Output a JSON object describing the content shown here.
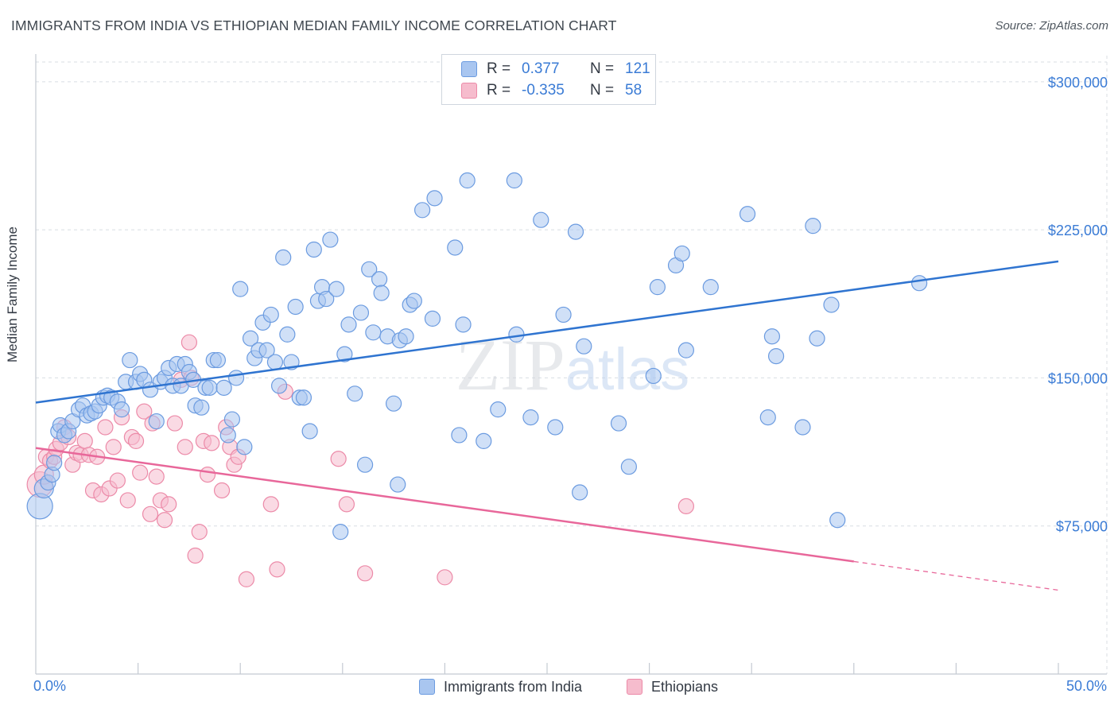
{
  "header": {
    "title": "IMMIGRANTS FROM INDIA VS ETHIOPIAN MEDIAN FAMILY INCOME CORRELATION CHART",
    "source": "Source: ZipAtlas.com"
  },
  "watermark": "ZIPatlas",
  "legend": {
    "rows": [
      {
        "r_label": "R =",
        "r_value": "0.377",
        "n_label": "N =",
        "n_value": "121"
      },
      {
        "r_label": "R =",
        "r_value": "-0.335",
        "n_label": "N =",
        "n_value": "58"
      }
    ]
  },
  "bottom_legend": {
    "india": "Immigrants from India",
    "ethiopians": "Ethiopians"
  },
  "colors": {
    "india_fill": "#a9c6f0",
    "india_stroke": "#6b9be0",
    "india_line": "#2f74d0",
    "eth_fill": "#f6bccd",
    "eth_stroke": "#ec8aa8",
    "eth_line": "#e8679a",
    "axis_text": "#3a7bd5",
    "grid": "#d8dde3"
  },
  "chart_data": {
    "type": "scatter",
    "title": "IMMIGRANTS FROM INDIA VS ETHIOPIAN MEDIAN FAMILY INCOME CORRELATION CHART",
    "xlabel": "",
    "ylabel": "Median Family Income",
    "xlim": [
      0,
      50
    ],
    "ylim": [
      0,
      310000
    ],
    "x_tick_labels": [
      "0.0%",
      "50.0%"
    ],
    "y_ticks": [
      75000,
      150000,
      225000,
      300000
    ],
    "y_tick_labels": [
      "$75,000",
      "$150,000",
      "$225,000",
      "$300,000"
    ],
    "grid": true,
    "series": [
      {
        "name": "Immigrants from India",
        "r": 0.377,
        "n": 121,
        "trend": {
          "x0": 0,
          "y0": 137500,
          "x1": 50,
          "y1": 209000
        },
        "points": [
          [
            0.2,
            85000
          ],
          [
            0.4,
            94000
          ],
          [
            0.6,
            97000
          ],
          [
            0.8,
            101000
          ],
          [
            0.9,
            107000
          ],
          [
            1.1,
            123000
          ],
          [
            1.2,
            126000
          ],
          [
            1.4,
            121000
          ],
          [
            1.6,
            123000
          ],
          [
            1.8,
            128000
          ],
          [
            2.1,
            134000
          ],
          [
            2.3,
            136000
          ],
          [
            2.5,
            131000
          ],
          [
            2.7,
            132000
          ],
          [
            2.9,
            133000
          ],
          [
            3.1,
            136000
          ],
          [
            3.3,
            140000
          ],
          [
            3.5,
            141000
          ],
          [
            3.7,
            140000
          ],
          [
            4.0,
            138000
          ],
          [
            4.2,
            134000
          ],
          [
            4.4,
            148000
          ],
          [
            4.6,
            159000
          ],
          [
            4.9,
            148000
          ],
          [
            5.1,
            152000
          ],
          [
            5.3,
            149000
          ],
          [
            5.6,
            144000
          ],
          [
            5.9,
            128000
          ],
          [
            6.1,
            148000
          ],
          [
            6.3,
            150000
          ],
          [
            6.5,
            155000
          ],
          [
            6.7,
            146000
          ],
          [
            6.9,
            157000
          ],
          [
            7.1,
            146000
          ],
          [
            7.3,
            157000
          ],
          [
            7.5,
            153000
          ],
          [
            7.7,
            149000
          ],
          [
            7.8,
            136000
          ],
          [
            8.1,
            135000
          ],
          [
            8.3,
            145000
          ],
          [
            8.5,
            145000
          ],
          [
            8.7,
            159000
          ],
          [
            8.9,
            159000
          ],
          [
            9.2,
            145000
          ],
          [
            9.4,
            121000
          ],
          [
            9.6,
            129000
          ],
          [
            9.8,
            150000
          ],
          [
            10.0,
            195000
          ],
          [
            10.2,
            115000
          ],
          [
            10.5,
            170000
          ],
          [
            10.7,
            160000
          ],
          [
            10.9,
            164000
          ],
          [
            11.1,
            178000
          ],
          [
            11.3,
            164000
          ],
          [
            11.5,
            182000
          ],
          [
            11.7,
            158000
          ],
          [
            11.9,
            146000
          ],
          [
            12.1,
            211000
          ],
          [
            12.3,
            172000
          ],
          [
            12.5,
            158000
          ],
          [
            12.7,
            186000
          ],
          [
            12.9,
            140000
          ],
          [
            13.1,
            140000
          ],
          [
            13.4,
            123000
          ],
          [
            13.6,
            215000
          ],
          [
            13.8,
            189000
          ],
          [
            14.0,
            196000
          ],
          [
            14.2,
            190000
          ],
          [
            14.4,
            220000
          ],
          [
            14.7,
            195000
          ],
          [
            14.9,
            72000
          ],
          [
            15.1,
            162000
          ],
          [
            15.3,
            177000
          ],
          [
            15.6,
            142000
          ],
          [
            15.9,
            183000
          ],
          [
            16.1,
            106000
          ],
          [
            16.3,
            205000
          ],
          [
            16.5,
            173000
          ],
          [
            16.8,
            200000
          ],
          [
            16.9,
            193000
          ],
          [
            17.2,
            171000
          ],
          [
            17.5,
            137000
          ],
          [
            17.7,
            96000
          ],
          [
            17.8,
            169000
          ],
          [
            18.1,
            171000
          ],
          [
            18.3,
            187000
          ],
          [
            18.5,
            189000
          ],
          [
            18.9,
            235000
          ],
          [
            19.4,
            180000
          ],
          [
            19.5,
            241000
          ],
          [
            20.5,
            216000
          ],
          [
            20.7,
            121000
          ],
          [
            20.9,
            177000
          ],
          [
            21.1,
            250000
          ],
          [
            21.9,
            118000
          ],
          [
            22.6,
            134000
          ],
          [
            23.4,
            250000
          ],
          [
            23.5,
            172000
          ],
          [
            24.2,
            130000
          ],
          [
            24.7,
            230000
          ],
          [
            25.4,
            125000
          ],
          [
            25.8,
            182000
          ],
          [
            26.4,
            224000
          ],
          [
            26.6,
            92000
          ],
          [
            26.8,
            166000
          ],
          [
            28.5,
            127000
          ],
          [
            29.0,
            105000
          ],
          [
            30.2,
            151000
          ],
          [
            30.4,
            196000
          ],
          [
            31.3,
            207000
          ],
          [
            31.6,
            213000
          ],
          [
            31.8,
            164000
          ],
          [
            33.0,
            196000
          ],
          [
            34.8,
            233000
          ],
          [
            35.8,
            130000
          ],
          [
            36.0,
            171000
          ],
          [
            36.2,
            161000
          ],
          [
            37.5,
            125000
          ],
          [
            38.0,
            227000
          ],
          [
            38.2,
            170000
          ],
          [
            38.9,
            187000
          ],
          [
            39.2,
            78000
          ],
          [
            43.2,
            198000
          ]
        ]
      },
      {
        "name": "Ethiopians",
        "r": -0.335,
        "n": 58,
        "trend": {
          "x0": 0,
          "y0": 114500,
          "x1": 40,
          "y1": 57000,
          "dash_to_x": 50,
          "dash_to_y": 42500
        },
        "points": [
          [
            0.2,
            96000
          ],
          [
            0.4,
            101000
          ],
          [
            0.5,
            110000
          ],
          [
            0.7,
            108000
          ],
          [
            0.9,
            110000
          ],
          [
            1.0,
            114000
          ],
          [
            1.2,
            117000
          ],
          [
            1.4,
            125000
          ],
          [
            1.6,
            120000
          ],
          [
            1.8,
            106000
          ],
          [
            2.0,
            112000
          ],
          [
            2.2,
            111000
          ],
          [
            2.4,
            118000
          ],
          [
            2.6,
            111000
          ],
          [
            2.8,
            93000
          ],
          [
            3.0,
            110000
          ],
          [
            3.2,
            91000
          ],
          [
            3.4,
            125000
          ],
          [
            3.6,
            94000
          ],
          [
            3.8,
            115000
          ],
          [
            4.0,
            98000
          ],
          [
            4.2,
            130000
          ],
          [
            4.5,
            88000
          ],
          [
            4.7,
            120000
          ],
          [
            4.9,
            118000
          ],
          [
            5.1,
            102000
          ],
          [
            5.3,
            133000
          ],
          [
            5.6,
            81000
          ],
          [
            5.7,
            127000
          ],
          [
            5.9,
            100000
          ],
          [
            6.1,
            88000
          ],
          [
            6.3,
            78000
          ],
          [
            6.5,
            86000
          ],
          [
            6.8,
            127000
          ],
          [
            7.1,
            149000
          ],
          [
            7.3,
            115000
          ],
          [
            7.5,
            168000
          ],
          [
            7.6,
            150000
          ],
          [
            7.8,
            60000
          ],
          [
            8.0,
            72000
          ],
          [
            8.2,
            118000
          ],
          [
            8.4,
            101000
          ],
          [
            8.6,
            117000
          ],
          [
            9.1,
            93000
          ],
          [
            9.3,
            125000
          ],
          [
            9.5,
            115000
          ],
          [
            9.7,
            106000
          ],
          [
            9.9,
            110000
          ],
          [
            10.3,
            48000
          ],
          [
            11.5,
            86000
          ],
          [
            11.8,
            53000
          ],
          [
            12.2,
            143000
          ],
          [
            14.8,
            109000
          ],
          [
            15.2,
            86000
          ],
          [
            16.1,
            51000
          ],
          [
            20.0,
            49000
          ],
          [
            31.8,
            85000
          ]
        ]
      }
    ]
  }
}
